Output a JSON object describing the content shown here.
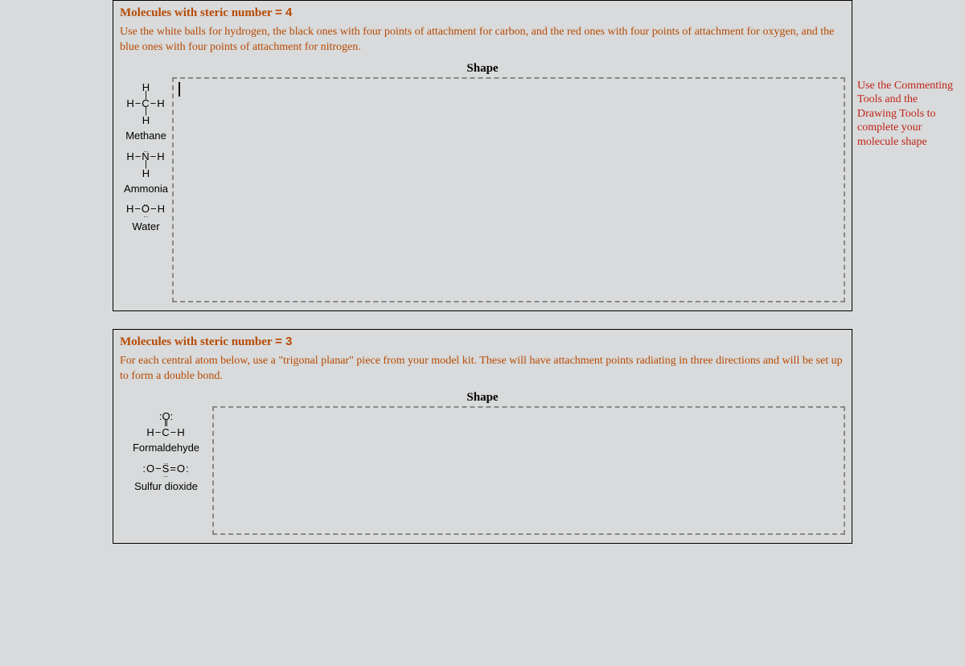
{
  "colors": {
    "page_bg": "#d8dadb",
    "frame_bg": "#5a6a75",
    "section_border": "#000000",
    "title_text": "#b84a02",
    "annot_text": "#c02418",
    "dashed_border": "#888888",
    "body_text": "#000000"
  },
  "section1": {
    "title_prefix": "Molecules with steric number ",
    "title_value": "= 4",
    "instructions": "Use the white balls for hydrogen, the black ones with four points of attachment for carbon, and the red ones with four points of attachment for oxygen, and the blue ones with four points of attachment for nitrogen.",
    "shape_label": "Shape",
    "molecules": {
      "methane": {
        "formula_top": "H",
        "formula_mid": "H−C−H",
        "formula_bot": "H",
        "name": "Methane"
      },
      "ammonia": {
        "formula_mid": "H−N−H",
        "formula_bot": "H",
        "name": "Ammonia",
        "lone_dots": ".."
      },
      "water": {
        "formula_mid": "H−O−H",
        "name": "Water",
        "lone_dots": ".."
      }
    },
    "annotation": "Use the Commenting Tools and the Drawing Tools to complete your molecule shape"
  },
  "section2": {
    "title_prefix": "Molecules with steric number ",
    "title_value": "= 3",
    "instructions": "For each central atom below, use a \"trigonal planar\" piece from your model kit. These will have attachment points radiating in three directions and will be set up to form a double bond.",
    "shape_label": "Shape",
    "molecules": {
      "formaldehyde": {
        "formula_top": ":O:",
        "dbl": "‖",
        "formula_mid": "H−C−H",
        "name": "Formaldehyde"
      },
      "sulfur_dioxide": {
        "formula": ":O−S=O:",
        "name": "Sulfur dioxide",
        "lone_dots": ".."
      }
    }
  }
}
